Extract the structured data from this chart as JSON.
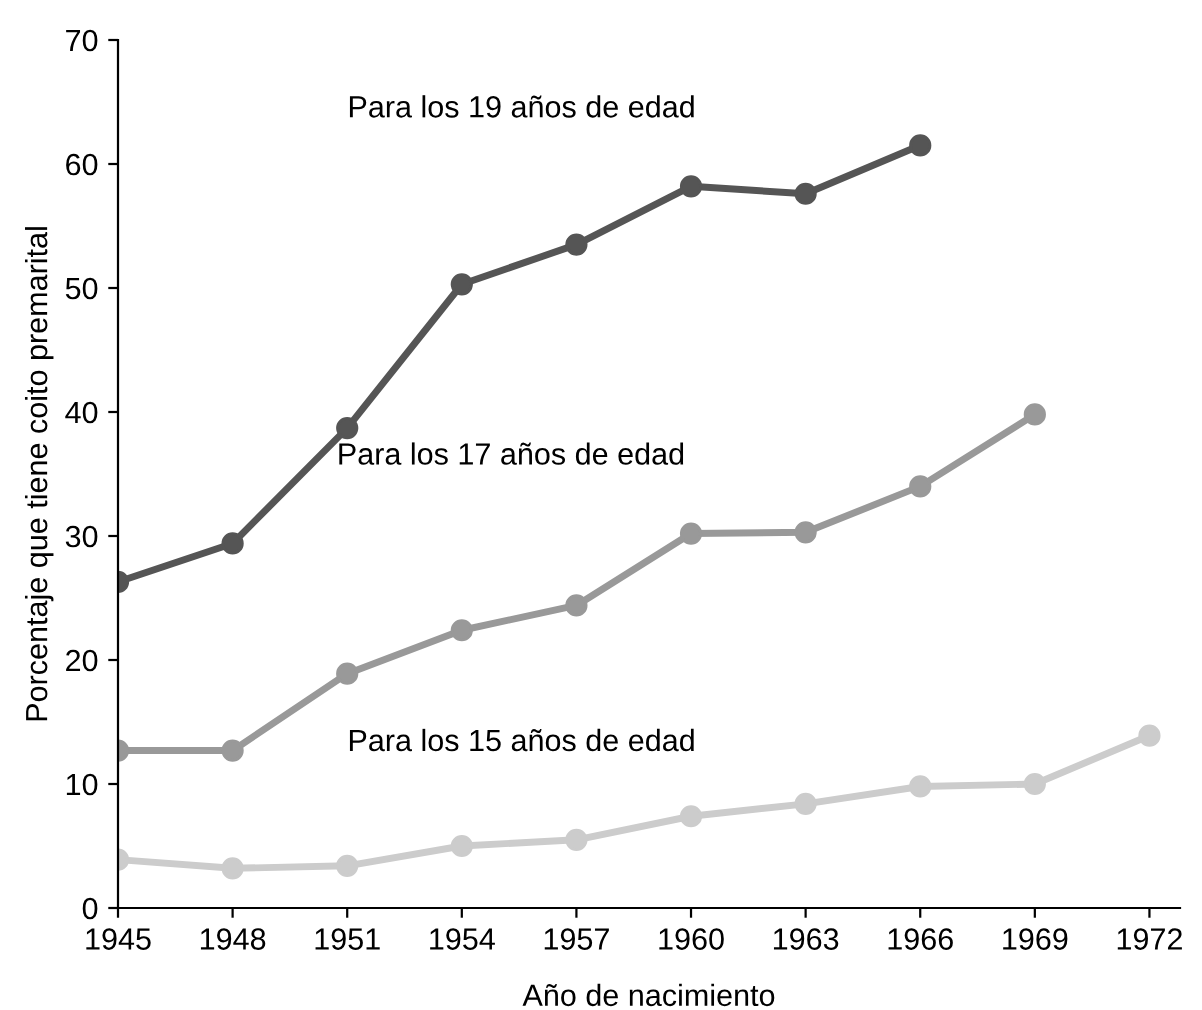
{
  "chart_data": {
    "type": "line",
    "xlabel": "Año de nacimiento",
    "ylabel": "Porcentaje que tiene coito premarital",
    "x": [
      1945,
      1948,
      1951,
      1954,
      1957,
      1960,
      1963,
      1966,
      1969,
      1972
    ],
    "series": [
      {
        "color": "#555555",
        "values": [
          26.3,
          29.4,
          38.7,
          50.3,
          53.5,
          58.2,
          57.6,
          61.5,
          null,
          null
        ]
      },
      {
        "color": "#999999",
        "values": [
          12.7,
          12.7,
          18.9,
          22.4,
          24.4,
          30.2,
          30.3,
          34.0,
          39.8,
          null
        ]
      },
      {
        "color": "#cccccc",
        "values": [
          3.9,
          3.2,
          3.4,
          5.0,
          5.5,
          7.4,
          8.4,
          9.8,
          10.0,
          13.9
        ]
      }
    ],
    "annotations": [
      "Para los 19 años de edad",
      "Para los 17 años de edad",
      "Para los 15 años de edad"
    ],
    "xlim": [
      1945,
      1972.8
    ],
    "xticks": [
      1945,
      1948,
      1951,
      1954,
      1957,
      1960,
      1963,
      1966,
      1969,
      1972
    ],
    "ylim": [
      0,
      70
    ],
    "yticks": [
      0,
      10,
      20,
      30,
      40,
      50,
      60,
      70
    ],
    "marker": "circle",
    "line_style": "solid",
    "grid": false,
    "legend": false
  }
}
